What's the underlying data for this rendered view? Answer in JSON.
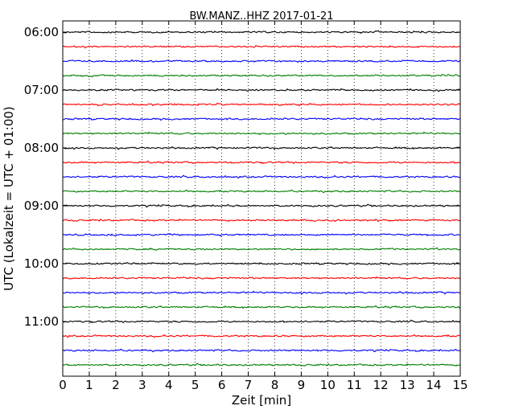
{
  "chart_data": {
    "type": "line",
    "title": "BW.MANZ..HHZ 2017-01-21",
    "xlabel": "Zeit  [min]",
    "ylabel": "UTC (Lokalzeit = UTC + 01:00)",
    "xlim": [
      0,
      15
    ],
    "x_ticks": [
      "0",
      "1",
      "2",
      "3",
      "4",
      "5",
      "6",
      "7",
      "8",
      "9",
      "10",
      "11",
      "12",
      "13",
      "14",
      "15"
    ],
    "y_ticks": [
      "06:00",
      "07:00",
      "08:00",
      "09:00",
      "10:00",
      "11:00"
    ],
    "y_tick_hours": [
      6,
      7,
      8,
      9,
      10,
      11
    ],
    "time_start": "06:00",
    "time_end": "11:45",
    "trace_interval_min": 15,
    "trace_times": [
      "06:00",
      "06:15",
      "06:30",
      "06:45",
      "07:00",
      "07:15",
      "07:30",
      "07:45",
      "08:00",
      "08:15",
      "08:30",
      "08:45",
      "09:00",
      "09:15",
      "09:30",
      "09:45",
      "10:00",
      "10:15",
      "10:30",
      "10:45",
      "11:00",
      "11:15",
      "11:30",
      "11:45"
    ],
    "trace_colors": [
      "#000000",
      "#ff0000",
      "#0000ff",
      "#008000"
    ],
    "vertical_grid": "dotted",
    "horizontal_grid": "none"
  }
}
